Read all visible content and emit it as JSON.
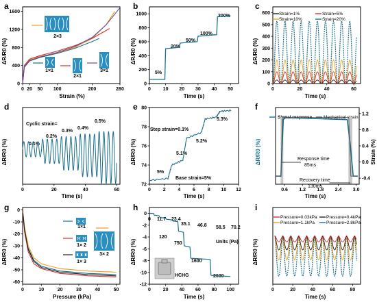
{
  "panels": {
    "a": {
      "letter": "a",
      "xlabel": "Strain (%)",
      "ylabel": "ΔR/R0 (%)",
      "xticks": [
        "0",
        "20",
        "50",
        "100",
        "200",
        "280"
      ],
      "yticks": [
        "0",
        "400",
        "800",
        "1200",
        "1600"
      ],
      "insets": [
        "2×3",
        "1×1",
        "2×1",
        "3×1"
      ]
    },
    "b": {
      "letter": "b",
      "xlabel": "Time (s)",
      "ylabel": "ΔR/R0 (%)",
      "xticks": [
        "0",
        "10",
        "20",
        "30",
        "40",
        "50"
      ],
      "yticks": [
        "0",
        "200",
        "400",
        "600",
        "800",
        "1000"
      ],
      "annotations": [
        "5%",
        "20%",
        "50%",
        "100%",
        "200%"
      ]
    },
    "c": {
      "letter": "c",
      "xlabel": "Time (s)",
      "ylabel": "ΔR/R0 (%)",
      "xticks": [
        "0",
        "20",
        "40",
        "60"
      ],
      "yticks": [
        "0",
        "100",
        "200",
        "300",
        "400",
        "500",
        "600"
      ],
      "legend": [
        "Strain=1%",
        "Strain=5%",
        "Strain=10%",
        "Strain=20%"
      ]
    },
    "d": {
      "letter": "d",
      "xlabel": "Time (s)",
      "ylabel": "ΔR/R0 (%)",
      "xticks": [
        "0",
        "20",
        "40",
        "60"
      ],
      "title": "Cyclic strain=",
      "annotations": [
        "0.1%",
        "0.2%",
        "0.3%",
        "0.4%",
        "0.5%"
      ]
    },
    "e": {
      "letter": "e",
      "xlabel": "Time (s)",
      "ylabel": "ΔR/R0 (%)",
      "xticks": [
        "0",
        "2",
        "4",
        "6",
        "8",
        "10",
        "12"
      ],
      "yticks": [
        "72",
        "74",
        "76",
        "78",
        "80"
      ],
      "step_text": "Step strain=0.1%",
      "base_text": "Base strain=5%",
      "annotations": [
        "5%",
        "5.1%",
        "5.2%",
        "5.3%"
      ]
    },
    "f": {
      "letter": "f",
      "xlabel": "Time (s)",
      "ylabel": "ΔR/R0 (%)",
      "ylabel_right": "Strain (%)",
      "xticks": [
        "0.6",
        "1.2",
        "1.8",
        "2.4",
        "3.0"
      ],
      "yticks_right": [
        "-0.4",
        "0.0",
        "0.4",
        "0.8",
        "1.2"
      ],
      "legend": [
        "Signal response",
        "Mechanical strain"
      ],
      "response_label": "Response time",
      "response_value": "85ms",
      "recovery_label": "Recovery time",
      "recovery_value": "130ms"
    },
    "g": {
      "letter": "g",
      "xlabel": "Pressure (kPa)",
      "ylabel": "ΔR/R0 (%)",
      "xticks": [
        "0",
        "10",
        "20",
        "30",
        "40",
        "50"
      ],
      "yticks": [
        "0",
        "-10",
        "-20",
        "-30",
        "-40",
        "-50",
        "-60"
      ],
      "insets": [
        "1×1",
        "1× 2",
        "3× 2",
        "1× 3"
      ]
    },
    "h": {
      "letter": "h",
      "xlabel": "Time (s)",
      "ylabel": "ΔR/R0 (%)",
      "xticks": [
        "0",
        "20",
        "40",
        "60",
        "80",
        "100"
      ],
      "yticks": [
        "0",
        "-2",
        "-4",
        "-6",
        "-8",
        "-10",
        "-12"
      ],
      "annotations": [
        "0",
        "11.7",
        "23.4",
        "35.1",
        "46.8",
        "58.5",
        "70.2",
        "120",
        "750",
        "1600",
        "2600"
      ],
      "units_text": "Units (Pa)",
      "weight_label": "HCHG"
    },
    "i": {
      "letter": "i",
      "xlabel": "Time (s)",
      "ylabel": "ΔR/R0 (%)",
      "xticks": [
        "0",
        "20",
        "40",
        "60",
        "80"
      ],
      "legend": [
        "Pressure=0.03kPa",
        "Pressure=0.4kPa",
        "Pressure=1.1kPa",
        "Pressure=2.8kPa"
      ]
    }
  },
  "colors": {
    "teal": "#1a6e8e",
    "red": "#d43030",
    "purple": "#6a4a9a",
    "orange": "#f0a020",
    "green": "#3a8a3a",
    "black": "#222222",
    "inset_blue": "#2a8fc0",
    "gray_band": "#c8c8c8"
  },
  "chart_data": [
    {
      "type": "line",
      "panel": "a",
      "xlabel": "Strain (%)",
      "ylabel": "ΔR/R0 (%)",
      "xlim": [
        0,
        280
      ],
      "ylim": [
        0,
        1700
      ],
      "series": [
        {
          "name": "2×3",
          "color": "#f0a020",
          "x": [
            0,
            5,
            20,
            50,
            100,
            150,
            200,
            240,
            265
          ],
          "y": [
            0,
            380,
            520,
            600,
            680,
            800,
            1000,
            1300,
            1600
          ]
        },
        {
          "name": "1×1",
          "color": "#1a6e8e",
          "x": [
            0,
            5,
            20,
            50,
            100,
            150,
            200,
            220
          ],
          "y": [
            0,
            360,
            500,
            580,
            670,
            780,
            930,
            1000
          ]
        },
        {
          "name": "2×1",
          "color": "#d43030",
          "x": [
            0,
            5,
            20,
            50,
            100,
            150,
            200,
            250
          ],
          "y": [
            0,
            400,
            540,
            620,
            720,
            840,
            1000,
            1220
          ]
        },
        {
          "name": "3×1",
          "color": "#6a4a9a",
          "x": [
            0,
            5,
            20,
            50,
            100,
            150,
            200,
            240,
            280
          ],
          "y": [
            0,
            370,
            510,
            590,
            690,
            820,
            1020,
            1300,
            1680
          ]
        }
      ]
    },
    {
      "type": "line",
      "panel": "b",
      "xlabel": "Time (s)",
      "ylabel": "ΔR/R0 (%)",
      "xlim": [
        0,
        55
      ],
      "ylim": [
        0,
        1100
      ],
      "series": [
        {
          "x": [
            0,
            9.5,
            10,
            18.5,
            19,
            29.5,
            30,
            41.5,
            42,
            50
          ],
          "y": [
            60,
            60,
            500,
            520,
            580,
            600,
            680,
            700,
            960,
            970
          ]
        }
      ]
    },
    {
      "type": "line",
      "panel": "c",
      "xlabel": "Time (s)",
      "ylabel": "ΔR/R0 (%)",
      "xlim": [
        0,
        65
      ],
      "ylim": [
        0,
        650
      ],
      "cycles": 11,
      "period_s": 6,
      "series": [
        {
          "name": "Strain=1%",
          "color": "#222222",
          "peak": 30
        },
        {
          "name": "Strain=5%",
          "color": "#d43030",
          "peak": 100
        },
        {
          "name": "Strain=10%",
          "color": "#f0a020",
          "peak": 200
        },
        {
          "name": "Strain=20%",
          "color": "#1a6e8e",
          "peak": 530
        }
      ]
    },
    {
      "type": "line",
      "panel": "d",
      "xlabel": "Time (s)",
      "ylabel": "ΔR/R0 (%)",
      "xlim": [
        0,
        62
      ],
      "series": [
        {
          "x_segments": [
            [
              0,
              12
            ],
            [
              12,
              24
            ],
            [
              24,
              36
            ],
            [
              36,
              48
            ],
            [
              48,
              60
            ]
          ],
          "amplitude": [
            1,
            1.6,
            2.2,
            2.8,
            3.4
          ],
          "cycles_per_segment": 4
        }
      ]
    },
    {
      "type": "line",
      "panel": "e",
      "xlabel": "Time (s)",
      "ylabel": "ΔR/R0 (%)",
      "xlim": [
        0,
        12
      ],
      "ylim": [
        72,
        80
      ],
      "series": [
        {
          "x": [
            0,
            2.5,
            3,
            4.5,
            5,
            7,
            7.5,
            9,
            9.5,
            11
          ],
          "y": [
            72.4,
            72.6,
            74.0,
            74.5,
            76.8,
            77.4,
            78.8,
            79.0,
            79.6,
            79.7
          ]
        }
      ]
    },
    {
      "type": "line",
      "panel": "f",
      "xlabel": "Time (s)",
      "ylabel": "ΔR/R0 (%)",
      "xlim": [
        0.3,
        3.1
      ],
      "series": [
        {
          "name": "Signal response",
          "color": "#1a6e8e",
          "x": [
            0.3,
            0.48,
            0.56,
            0.64,
            2.7,
            2.8,
            2.9,
            3.05
          ],
          "y": [
            -0.4,
            -0.4,
            1.0,
            1.05,
            1.0,
            0.4,
            -0.4,
            -0.4
          ]
        },
        {
          "name": "Mechanical strain",
          "color": "#555555",
          "x": [
            0.3,
            0.48,
            0.53,
            2.75,
            2.82,
            3.05
          ],
          "y": [
            -0.4,
            -0.4,
            1.05,
            1.05,
            -0.4,
            -0.4
          ]
        }
      ]
    },
    {
      "type": "line",
      "panel": "g",
      "xlabel": "Pressure (kPa)",
      "ylabel": "ΔR/R0 (%)",
      "xlim": [
        0,
        52
      ],
      "ylim": [
        -62,
        2
      ],
      "series": [
        {
          "name": "1×1",
          "color": "#1a6e8e",
          "x": [
            0,
            1,
            3,
            6,
            10,
            20,
            35,
            50
          ],
          "y": [
            0,
            -15,
            -32,
            -42,
            -47,
            -51,
            -53,
            -54
          ]
        },
        {
          "name": "1× 2",
          "color": "#d43030",
          "x": [
            0,
            1,
            3,
            6,
            10,
            20,
            35,
            50
          ],
          "y": [
            0,
            -18,
            -35,
            -45,
            -49,
            -53,
            -55,
            -56
          ]
        },
        {
          "name": "3× 2",
          "color": "#f0a020",
          "x": [
            0,
            1,
            3,
            6,
            10,
            20,
            35,
            50
          ],
          "y": [
            0,
            -14,
            -30,
            -40,
            -45,
            -49,
            -51,
            -52
          ]
        },
        {
          "name": "1× 3",
          "color": "#222222",
          "x": [
            0,
            1,
            3,
            6,
            10,
            20,
            35,
            50
          ],
          "y": [
            0,
            -16,
            -33,
            -43,
            -48,
            -52,
            -54,
            -55
          ]
        }
      ]
    },
    {
      "type": "line",
      "panel": "h",
      "xlabel": "Time (s)",
      "ylabel": "ΔR/R0 (%)",
      "xlim": [
        0,
        110
      ],
      "ylim": [
        -12,
        1
      ],
      "series": [
        {
          "x": [
            0,
            5,
            6,
            12,
            13,
            20,
            21,
            28,
            29,
            35,
            36,
            42,
            43,
            50,
            51,
            75,
            76,
            100
          ],
          "y": [
            0,
            0,
            -0.3,
            -0.4,
            -0.7,
            -0.8,
            -1.0,
            -1.1,
            -1.3,
            -1.4,
            -3.0,
            -3.2,
            -5.5,
            -5.7,
            -7.6,
            -7.8,
            -10.5,
            -10.7
          ]
        }
      ]
    },
    {
      "type": "line",
      "panel": "i",
      "xlabel": "Time (s)",
      "ylabel": "ΔR/R0 (%)",
      "xlim": [
        0,
        88
      ],
      "cycles": 10,
      "period_s": 8,
      "series": [
        {
          "name": "Pressure=0.03kPa",
          "color": "#d43030",
          "amplitude": 0.15
        },
        {
          "name": "Pressure=0.4kPa",
          "color": "#222222",
          "amplitude": 0.35
        },
        {
          "name": "Pressure=1.1kPa",
          "color": "#f0a020",
          "amplitude": 0.6
        },
        {
          "name": "Pressure=2.8kPa",
          "color": "#1a6e8e",
          "amplitude": 1.0
        }
      ]
    }
  ]
}
